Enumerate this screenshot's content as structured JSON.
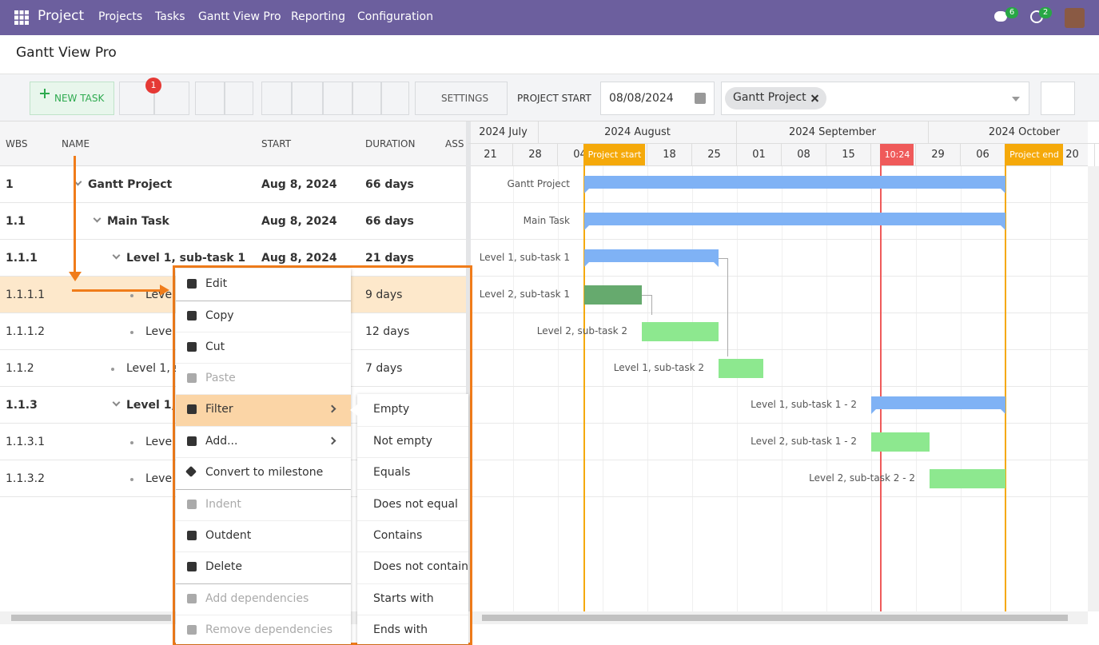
{
  "navbar": {
    "app": "Project",
    "menu": [
      "Projects",
      "Tasks",
      "Gantt View Pro",
      "Reporting",
      "Configuration"
    ],
    "chat_badge": "6",
    "activity_badge": "2"
  },
  "breadcrumb": "Gantt View Pro",
  "toolbar": {
    "new_task": "NEW TASK",
    "undo_badge": "1",
    "settings": "SETTINGS",
    "project_start_label": "PROJECT START",
    "project_start_value": "08/08/2024",
    "filter_tag": "Gantt Project"
  },
  "grid": {
    "columns": [
      "WBS",
      "NAME",
      "START",
      "DURATION",
      "ASS"
    ],
    "rows": [
      [
        "1",
        "Gantt Project",
        "Aug 8, 2024",
        "66 days"
      ],
      [
        "1.1",
        "Main Task",
        "Aug 8, 2024",
        "66 days"
      ],
      [
        "1.1.1",
        "Level 1, sub-task 1",
        "Aug 8, 2024",
        "21 days"
      ],
      [
        "1.1.1.1",
        "Level 2, sub-task 1",
        "",
        "9 days"
      ],
      [
        "1.1.1.2",
        "Level 2, sub-task 2",
        "",
        "12 days"
      ],
      [
        "1.1.2",
        "Level 1, sub-task 2",
        "",
        "7 days"
      ],
      [
        "1.1.3",
        "Level 1, sub-task 1 - 2",
        "",
        "",
        ""
      ],
      [
        "1.1.3.1",
        "Level 2, sub-task 1 - 2",
        "",
        ""
      ],
      [
        "1.1.3.2",
        "Level 2, sub-task 2 - 2",
        "",
        ""
      ]
    ]
  },
  "timeline": {
    "months": [
      "2024 July",
      "2024 August",
      "2024 September",
      "2024 October"
    ],
    "weeks": [
      "21",
      "28",
      "04",
      null,
      "18",
      "25",
      "01",
      "08",
      "15",
      null,
      "29",
      "06",
      null,
      "20"
    ],
    "project_start": "Project start",
    "project_end": "Project end",
    "today": "10:24",
    "bar_labels": [
      "Gantt Project",
      "Main Task",
      "Level 1, sub-task 1",
      "Level 2, sub-task 1",
      "Level 2, sub-task 2",
      "Level 1, sub-task 2",
      "Level 1, sub-task 1 - 2",
      "Level 2, sub-task 1 - 2",
      "Level 2, sub-task 2 - 2"
    ]
  },
  "context_menu": {
    "items": [
      "Edit",
      "Copy",
      "Cut",
      "Paste",
      "Filter",
      "Add...",
      "Convert to milestone",
      "Indent",
      "Outdent",
      "Delete",
      "Add dependencies",
      "Remove dependencies"
    ],
    "filter_submenu": [
      "Empty",
      "Not empty",
      "Equals",
      "Does not equal",
      "Contains",
      "Does not contain",
      "Starts with",
      "Ends with"
    ]
  }
}
